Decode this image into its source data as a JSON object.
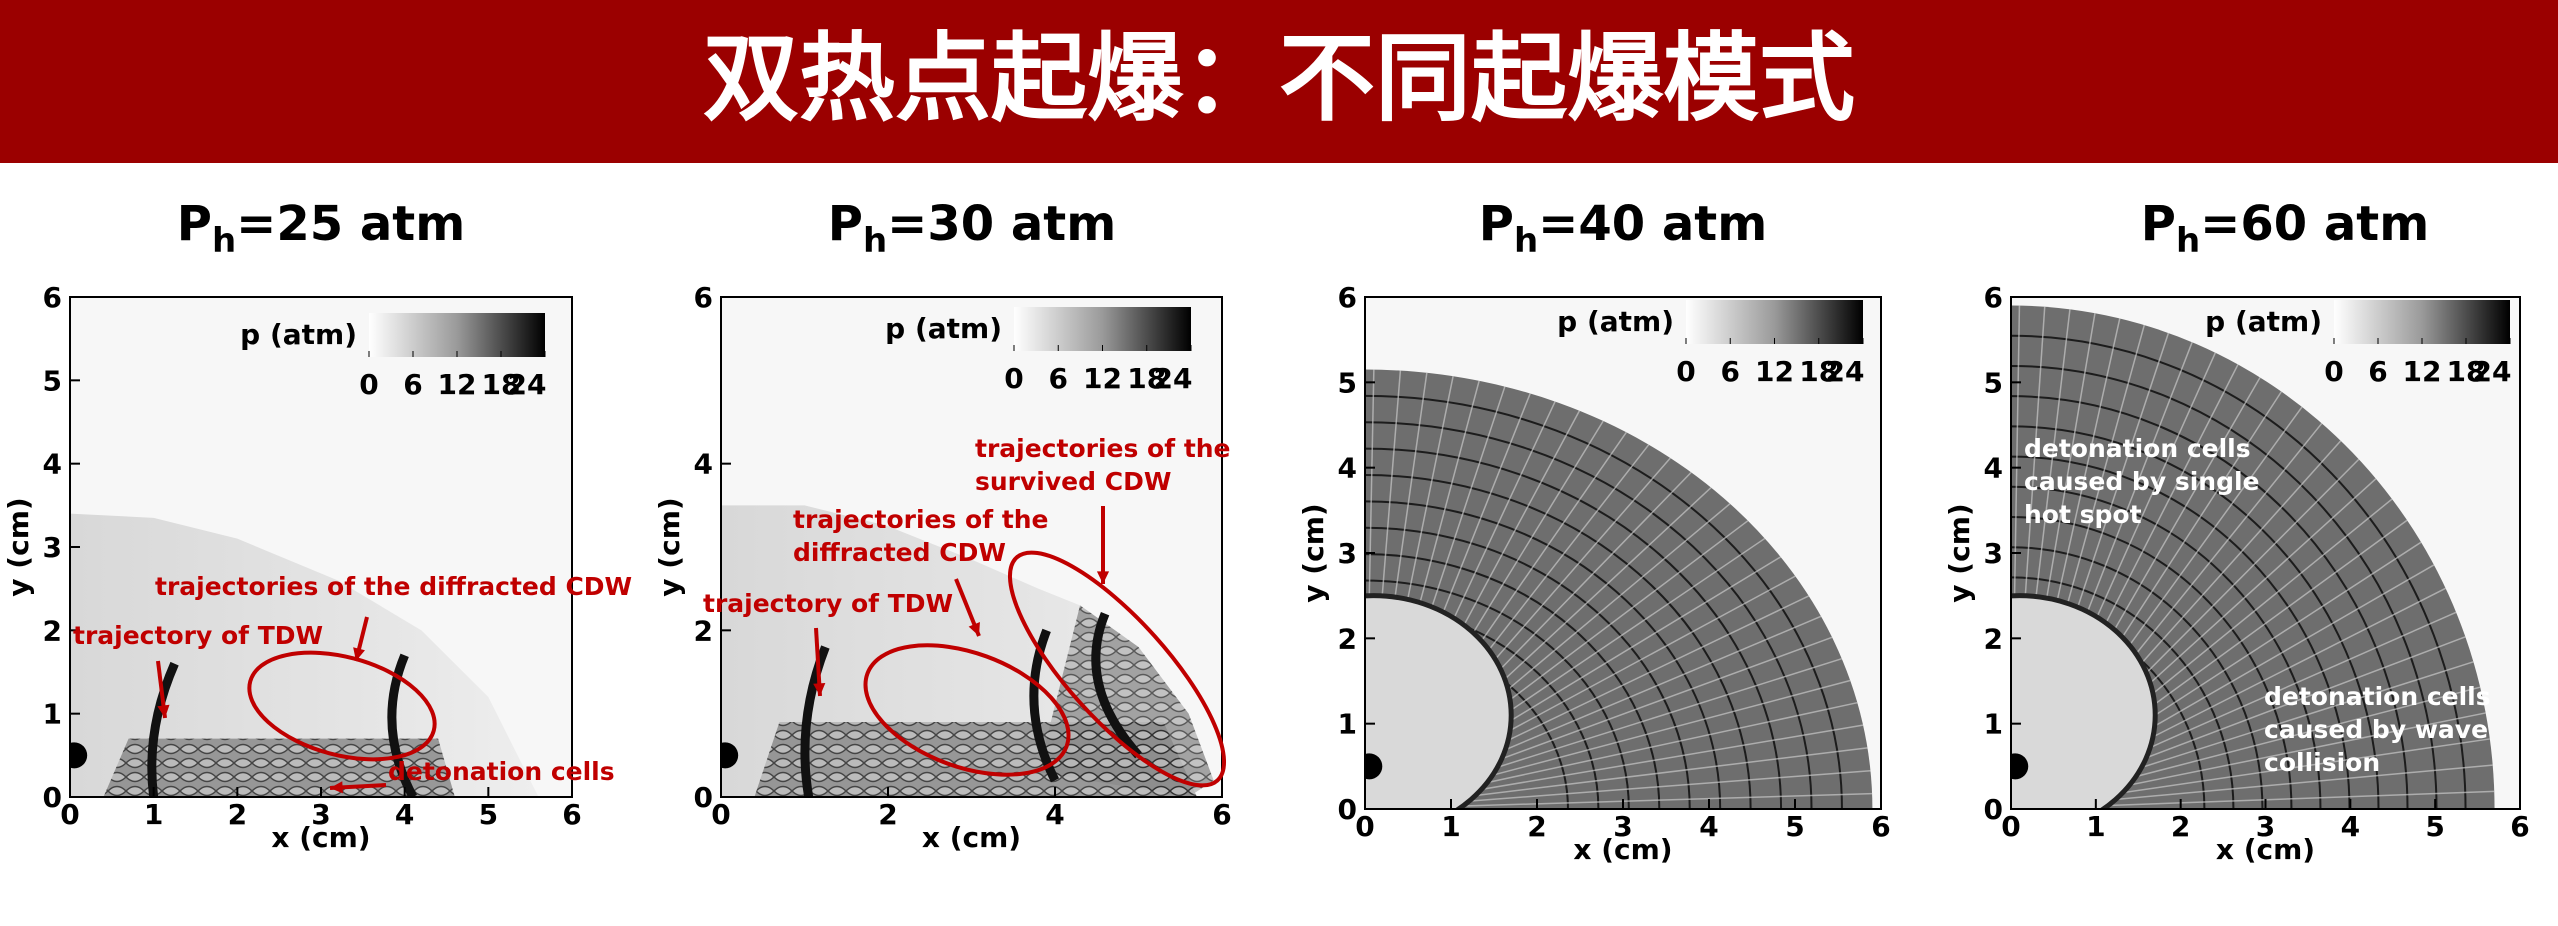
{
  "header": {
    "title": "双热点起爆：不同起爆模式"
  },
  "panels": [
    {
      "title": {
        "main": "P",
        "sub": "h",
        "rest": "=25 atm"
      },
      "x_label": "x (cm)",
      "y_label": "y (cm)",
      "xlim": [
        0,
        6
      ],
      "ylim": [
        0,
        6
      ],
      "xticks": [
        0,
        1,
        2,
        3,
        4,
        5,
        6
      ],
      "yticks": [
        0,
        1,
        2,
        3,
        4,
        5,
        6
      ],
      "colorbar": {
        "label": "p (atm)",
        "lim": [
          0,
          24
        ],
        "ticks": [
          0,
          6,
          12,
          18,
          24
        ]
      },
      "annotations": [
        {
          "lines": [
            "trajectories of the diffracted CDW"
          ]
        },
        {
          "lines": [
            "trajectory of TDW"
          ]
        },
        {
          "lines": [
            "detonation cells"
          ]
        }
      ]
    },
    {
      "title": {
        "main": "P",
        "sub": "h",
        "rest": "=30 atm"
      },
      "x_label": "x (cm)",
      "y_label": "y (cm)",
      "xlim": [
        0,
        6
      ],
      "ylim": [
        0,
        6
      ],
      "xticks": [
        0,
        2,
        4,
        6
      ],
      "yticks": [
        0,
        2,
        4,
        6
      ],
      "colorbar": {
        "label": "p (atm)",
        "lim": [
          0,
          24
        ],
        "ticks": [
          0,
          6,
          12,
          18,
          24
        ]
      },
      "annotations": [
        {
          "lines": [
            "trajectory of TDW"
          ]
        },
        {
          "lines": [
            "trajectories of the",
            "diffracted CDW"
          ]
        },
        {
          "lines": [
            "trajectories of the",
            "survived CDW"
          ]
        }
      ]
    },
    {
      "title": {
        "main": "P",
        "sub": "h",
        "rest": "=40 atm"
      },
      "x_label": "x (cm)",
      "y_label": "y (cm)",
      "xlim": [
        0,
        6
      ],
      "ylim": [
        0,
        6
      ],
      "xticks": [
        0,
        1,
        2,
        3,
        4,
        5,
        6
      ],
      "yticks": [
        0,
        1,
        2,
        3,
        4,
        5,
        6
      ],
      "colorbar": {
        "label": "p (atm)",
        "lim": [
          0,
          24
        ],
        "ticks": [
          0,
          6,
          12,
          18,
          24
        ]
      },
      "annotations": []
    },
    {
      "title": {
        "main": "P",
        "sub": "h",
        "rest": "=60 atm"
      },
      "x_label": "x (cm)",
      "y_label": "y (cm)",
      "xlim": [
        0,
        6
      ],
      "ylim": [
        0,
        6
      ],
      "xticks": [
        0,
        1,
        2,
        3,
        4,
        5,
        6
      ],
      "yticks": [
        0,
        1,
        2,
        3,
        4,
        5,
        6
      ],
      "colorbar": {
        "label": "p (atm)",
        "lim": [
          0,
          24
        ],
        "ticks": [
          0,
          6,
          12,
          18,
          24
        ]
      },
      "annotations": [
        {
          "lines": [
            "detonation cells",
            "caused by single",
            "hot spot"
          ]
        },
        {
          "lines": [
            "detonation cells",
            "caused by wave",
            "collision"
          ]
        }
      ]
    }
  ]
}
